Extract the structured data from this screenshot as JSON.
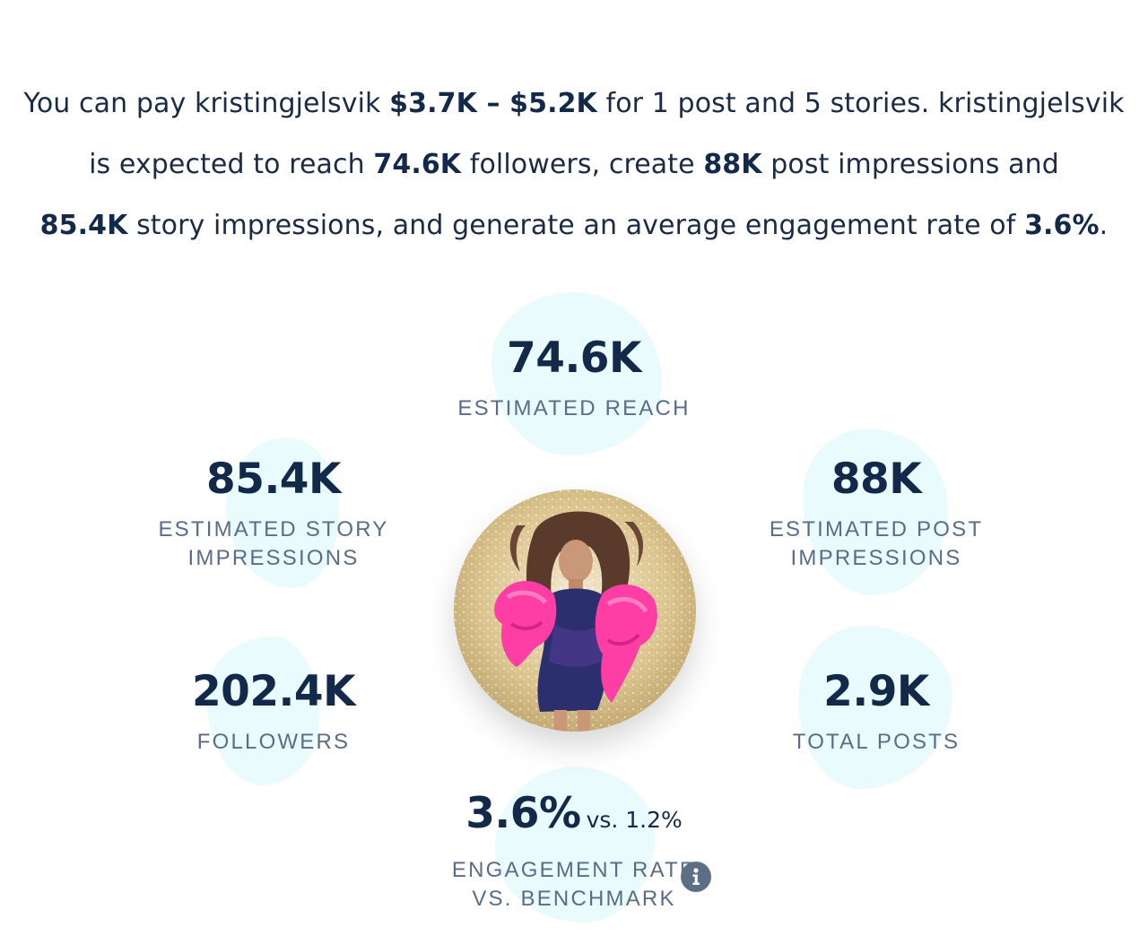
{
  "summary": {
    "l1_a": "You can pay kristingjelsvik ",
    "l1_price": "$3.7K – $5.2K",
    "l1_b": " for 1 post and 5 stories. kristingjelsvik",
    "l2_a": "is expected to reach ",
    "l2_reach": "74.6K",
    "l2_b": " followers, create ",
    "l2_post": "88K",
    "l2_c": " post impressions and",
    "l3_story": "85.4K",
    "l3_a": " story impressions, and generate an average engagement rate of ",
    "l3_rate": "3.6%",
    "l3_b": "."
  },
  "stats": {
    "reach": {
      "value": "74.6K",
      "label": "ESTIMATED REACH"
    },
    "story_impressions": {
      "value": "85.4K",
      "label_1": "ESTIMATED STORY",
      "label_2": "IMPRESSIONS"
    },
    "post_impressions": {
      "value": "88K",
      "label_1": "ESTIMATED POST",
      "label_2": "IMPRESSIONS"
    },
    "followers": {
      "value": "202.4K",
      "label": "FOLLOWERS"
    },
    "total_posts": {
      "value": "2.9K",
      "label": "TOTAL POSTS"
    },
    "engagement": {
      "value": "3.6%",
      "vs": "vs. 1.2%",
      "label_1": "ENGAGEMENT RATE",
      "label_2": "VS. BENCHMARK"
    }
  },
  "icons": {
    "info": "info-icon"
  },
  "colors": {
    "primary_text": "#13294a",
    "label_text": "#5a6d87",
    "blob": "#eafbfe",
    "info_icon": "#5d6f85",
    "accent_pink": "#ff3ea5"
  }
}
